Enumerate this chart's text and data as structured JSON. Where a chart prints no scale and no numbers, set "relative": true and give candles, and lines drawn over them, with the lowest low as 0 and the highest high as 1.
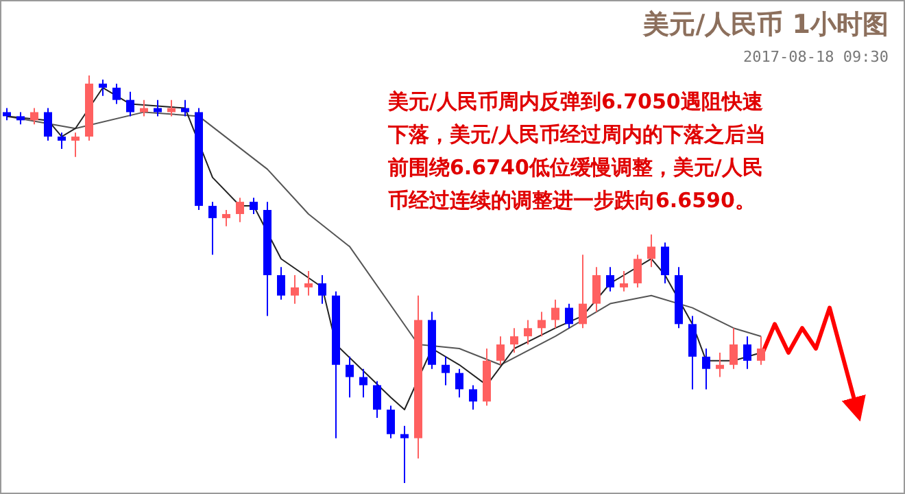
{
  "chart_data": {
    "type": "candlestick",
    "title": "美元/人民币 1小时图",
    "subtitle": "2017-08-18 09:30",
    "relative": true,
    "annotations": [
      "美元/人民币周内反弹到6.7050遇阻快速下落，美元/人民币经过周内的下落之后当前围绕6.6740低位缓慢调整，美元/人民币经过连续的调整进一步跌向6.6590。"
    ],
    "categories": [
      null,
      null,
      null,
      null,
      null,
      null,
      null,
      null,
      null,
      null,
      null,
      null,
      null,
      null,
      null,
      null,
      null,
      null,
      null,
      null,
      null,
      null,
      null,
      null,
      null,
      null,
      null,
      null,
      null,
      null,
      null,
      null,
      null,
      null,
      null,
      null,
      null,
      null,
      null,
      null,
      null,
      null,
      null,
      null,
      null,
      null,
      null,
      null,
      null,
      null,
      null,
      null,
      null,
      null,
      null,
      null,
      null,
      null,
      null,
      null,
      null,
      null,
      null
    ],
    "ohlc": [
      [
        0.91,
        0.92,
        0.89,
        0.9
      ],
      [
        0.9,
        0.91,
        0.88,
        0.89
      ],
      [
        0.89,
        0.92,
        0.88,
        0.91
      ],
      [
        0.91,
        0.92,
        0.84,
        0.85
      ],
      [
        0.85,
        0.86,
        0.82,
        0.84
      ],
      [
        0.84,
        0.86,
        0.8,
        0.85
      ],
      [
        0.85,
        1.0,
        0.84,
        0.98
      ],
      [
        0.98,
        0.99,
        0.95,
        0.97
      ],
      [
        0.97,
        0.98,
        0.93,
        0.94
      ],
      [
        0.94,
        0.96,
        0.9,
        0.91
      ],
      [
        0.91,
        0.94,
        0.9,
        0.92
      ],
      [
        0.92,
        0.94,
        0.9,
        0.91
      ],
      [
        0.91,
        0.94,
        0.9,
        0.92
      ],
      [
        0.92,
        0.94,
        0.9,
        0.91
      ],
      [
        0.91,
        0.92,
        0.67,
        0.68
      ],
      [
        0.68,
        0.69,
        0.56,
        0.65
      ],
      [
        0.65,
        0.67,
        0.63,
        0.66
      ],
      [
        0.66,
        0.7,
        0.64,
        0.69
      ],
      [
        0.69,
        0.7,
        0.66,
        0.67
      ],
      [
        0.67,
        0.69,
        0.41,
        0.51
      ],
      [
        0.51,
        0.53,
        0.45,
        0.46
      ],
      [
        0.46,
        0.51,
        0.44,
        0.48
      ],
      [
        0.48,
        0.52,
        0.46,
        0.49
      ],
      [
        0.49,
        0.51,
        0.44,
        0.46
      ],
      [
        0.46,
        0.47,
        0.11,
        0.29
      ],
      [
        0.29,
        0.31,
        0.21,
        0.26
      ],
      [
        0.26,
        0.28,
        0.21,
        0.24
      ],
      [
        0.24,
        0.25,
        0.16,
        0.18
      ],
      [
        0.18,
        0.19,
        0.11,
        0.12
      ],
      [
        0.12,
        0.14,
        0,
        0.11
      ],
      [
        0.11,
        0.46,
        0.06,
        0.4
      ],
      [
        0.4,
        0.42,
        0.28,
        0.29
      ],
      [
        0.29,
        0.31,
        0.24,
        0.27
      ],
      [
        0.27,
        0.28,
        0.21,
        0.23
      ],
      [
        0.23,
        0.24,
        0.18,
        0.2
      ],
      [
        0.2,
        0.33,
        0.19,
        0.3
      ],
      [
        0.3,
        0.36,
        0.29,
        0.34
      ],
      [
        0.34,
        0.38,
        0.32,
        0.36
      ],
      [
        0.36,
        0.4,
        0.34,
        0.38
      ],
      [
        0.38,
        0.42,
        0.36,
        0.4
      ],
      [
        0.4,
        0.45,
        0.38,
        0.43
      ],
      [
        0.43,
        0.44,
        0.38,
        0.39
      ],
      [
        0.39,
        0.56,
        0.38,
        0.44
      ],
      [
        0.44,
        0.53,
        0.42,
        0.51
      ],
      [
        0.51,
        0.53,
        0.47,
        0.48
      ],
      [
        0.48,
        0.52,
        0.47,
        0.49
      ],
      [
        0.49,
        0.56,
        0.48,
        0.55
      ],
      [
        0.55,
        0.61,
        0.53,
        0.58
      ],
      [
        0.58,
        0.59,
        0.49,
        0.51
      ],
      [
        0.51,
        0.53,
        0.38,
        0.39
      ],
      [
        0.39,
        0.41,
        0.23,
        0.31
      ],
      [
        0.31,
        0.33,
        0.23,
        0.28
      ],
      [
        0.28,
        0.32,
        0.26,
        0.29
      ],
      [
        0.29,
        0.38,
        0.28,
        0.34
      ],
      [
        0.34,
        0.36,
        0.28,
        0.3
      ],
      [
        0.3,
        0.36,
        0.29,
        0.33
      ],
      null,
      null,
      null,
      null,
      null,
      null,
      null
    ],
    "colors": [
      "#0000ff",
      "#0000ff",
      "#ff6060",
      "#0000ff",
      "#0000ff",
      "#ff6060",
      "#ff6060",
      "#0000ff",
      "#0000ff",
      "#0000ff",
      "#ff6060",
      "#0000ff",
      "#ff6060",
      "#0000ff",
      "#0000ff",
      "#0000ff",
      "#ff6060",
      "#ff6060",
      "#0000ff",
      "#0000ff",
      "#0000ff",
      "#ff6060",
      "#ff6060",
      "#0000ff",
      "#0000ff",
      "#0000ff",
      "#0000ff",
      "#0000ff",
      "#0000ff",
      "#0000ff",
      "#ff6060",
      "#0000ff",
      "#0000ff",
      "#0000ff",
      "#0000ff",
      "#ff6060",
      "#ff6060",
      "#ff6060",
      "#ff6060",
      "#ff6060",
      "#ff6060",
      "#0000ff",
      "#ff6060",
      "#ff6060",
      "#0000ff",
      "#ff6060",
      "#ff6060",
      "#ff6060",
      "#0000ff",
      "#0000ff",
      "#0000ff",
      "#0000ff",
      "#ff6060",
      "#ff6060",
      "#0000ff",
      "#ff6060",
      null,
      null,
      null,
      null,
      null,
      null,
      null
    ],
    "series": [
      {
        "type": "line",
        "color": "#555555",
        "values": [
          0.9,
          null,
          null,
          null,
          null,
          0.87,
          null,
          null,
          null,
          null,
          0.91,
          null,
          null,
          null,
          0.9,
          null,
          null,
          null,
          null,
          0.77,
          null,
          null,
          0.66,
          null,
          null,
          0.58,
          null,
          null,
          null,
          null,
          0.34,
          null,
          null,
          0.33,
          null,
          null,
          0.29,
          null,
          null,
          null,
          0.36,
          null,
          null,
          null,
          0.44,
          null,
          null,
          0.46,
          null,
          null,
          0.43,
          null,
          null,
          0.38,
          null,
          0.36,
          null,
          null,
          null,
          null,
          null,
          null,
          null
        ]
      },
      {
        "type": "line",
        "color": "#222222",
        "values": [
          0.9,
          null,
          null,
          0.89,
          0.85,
          0.87,
          null,
          0.97,
          null,
          0.93,
          null,
          null,
          null,
          0.92,
          null,
          0.75,
          null,
          0.68,
          0.68,
          null,
          0.55,
          null,
          null,
          0.48,
          0.34,
          null,
          null,
          null,
          0.21,
          0.18,
          null,
          0.33,
          null,
          0.29,
          null,
          0.24,
          null,
          0.33,
          null,
          null,
          0.38,
          null,
          0.41,
          null,
          0.49,
          null,
          null,
          0.55,
          0.51,
          null,
          0.39,
          0.3,
          null,
          0.3,
          null,
          0.32,
          null,
          null,
          null,
          null,
          null,
          null,
          null
        ]
      },
      {
        "type": "line",
        "color": "#ff0000",
        "values": [
          null,
          null,
          null,
          null,
          null,
          null,
          null,
          null,
          null,
          null,
          null,
          null,
          null,
          null,
          null,
          null,
          null,
          null,
          null,
          null,
          null,
          null,
          null,
          null,
          null,
          null,
          null,
          null,
          null,
          null,
          null,
          null,
          null,
          null,
          null,
          null,
          null,
          null,
          null,
          null,
          null,
          null,
          null,
          null,
          null,
          null,
          null,
          null,
          null,
          null,
          null,
          null,
          null,
          null,
          null,
          0.31,
          0.39,
          0.32,
          0.38,
          0.33,
          0.43,
          null,
          0.18
        ]
      }
    ]
  }
}
